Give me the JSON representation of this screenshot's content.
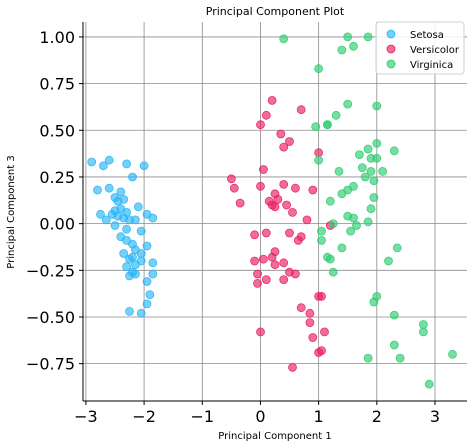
{
  "chart_data": {
    "type": "scatter",
    "title": "Principal Component Plot",
    "xlabel": "Principal Component 1",
    "ylabel": "Principal Component 3",
    "xlim": [
      -3.05,
      3.55
    ],
    "ylim": [
      -0.95,
      1.08
    ],
    "xticks": [
      -3,
      -2,
      -1,
      0,
      1,
      2,
      3
    ],
    "xtick_labels": [
      "−3",
      "−2",
      "−1",
      "0",
      "1",
      "2",
      "3"
    ],
    "yticks": [
      1.0,
      0.75,
      0.5,
      0.25,
      0.0,
      -0.25,
      -0.5,
      -0.75
    ],
    "ytick_labels": [
      "1.00",
      "0.75",
      "0.50",
      "0.25",
      "0.00",
      "−0.25",
      "−0.50",
      "−0.75"
    ],
    "grid": true,
    "legend_position": "top-right",
    "series": [
      {
        "name": "Setosa",
        "color": "#29b6f6",
        "points": [
          [
            -2.9,
            0.33
          ],
          [
            -2.7,
            0.31
          ],
          [
            -2.6,
            0.34
          ],
          [
            -2.3,
            0.32
          ],
          [
            -2.0,
            0.31
          ],
          [
            -2.8,
            0.18
          ],
          [
            -2.6,
            0.19
          ],
          [
            -2.5,
            0.14
          ],
          [
            -2.4,
            0.17
          ],
          [
            -2.2,
            0.25
          ],
          [
            -2.45,
            0.12
          ],
          [
            -2.35,
            0.13
          ],
          [
            -2.5,
            0.07
          ],
          [
            -2.4,
            0.08
          ],
          [
            -2.3,
            0.06
          ],
          [
            -2.55,
            0.05
          ],
          [
            -2.45,
            0.04
          ],
          [
            -2.35,
            0.03
          ],
          [
            -2.25,
            0.02
          ],
          [
            -2.15,
            0.02
          ],
          [
            -2.75,
            0.05
          ],
          [
            -2.65,
            0.02
          ],
          [
            -2.1,
            0.09
          ],
          [
            -1.95,
            0.05
          ],
          [
            -1.85,
            0.03
          ],
          [
            -2.5,
            -0.01
          ],
          [
            -2.3,
            -0.03
          ],
          [
            -2.05,
            -0.04
          ],
          [
            -2.4,
            -0.07
          ],
          [
            -2.3,
            -0.09
          ],
          [
            -2.2,
            -0.11
          ],
          [
            -2.15,
            -0.14
          ],
          [
            -2.05,
            -0.16
          ],
          [
            -1.95,
            -0.12
          ],
          [
            -2.35,
            -0.16
          ],
          [
            -2.25,
            -0.19
          ],
          [
            -2.15,
            -0.22
          ],
          [
            -2.05,
            -0.2
          ],
          [
            -2.3,
            -0.23
          ],
          [
            -2.2,
            -0.26
          ],
          [
            -2.25,
            -0.28
          ],
          [
            -2.15,
            -0.27
          ],
          [
            -1.85,
            -0.21
          ],
          [
            -1.85,
            -0.27
          ],
          [
            -1.95,
            -0.31
          ],
          [
            -1.9,
            -0.38
          ],
          [
            -1.95,
            -0.43
          ],
          [
            -2.25,
            -0.47
          ],
          [
            -2.05,
            -0.48
          ],
          [
            -2.2,
            -0.18
          ]
        ]
      },
      {
        "name": "Versicolor",
        "color": "#e91e63",
        "points": [
          [
            0.2,
            0.66
          ],
          [
            0.7,
            0.61
          ],
          [
            0.1,
            0.58
          ],
          [
            0.0,
            0.53
          ],
          [
            0.35,
            0.48
          ],
          [
            0.5,
            0.44
          ],
          [
            0.4,
            0.41
          ],
          [
            1.0,
            0.38
          ],
          [
            0.05,
            0.29
          ],
          [
            -0.5,
            0.24
          ],
          [
            -0.45,
            0.19
          ],
          [
            -0.35,
            0.11
          ],
          [
            0.0,
            0.2
          ],
          [
            0.25,
            0.16
          ],
          [
            0.6,
            0.19
          ],
          [
            0.4,
            0.21
          ],
          [
            0.9,
            0.18
          ],
          [
            0.3,
            0.13
          ],
          [
            0.45,
            0.1
          ],
          [
            0.55,
            0.06
          ],
          [
            0.25,
            0.09
          ],
          [
            0.2,
            0.1
          ],
          [
            0.15,
            0.12
          ],
          [
            0.8,
            0.02
          ],
          [
            1.2,
            -0.01
          ],
          [
            0.1,
            -0.05
          ],
          [
            -0.1,
            -0.06
          ],
          [
            0.7,
            -0.07
          ],
          [
            0.5,
            -0.05
          ],
          [
            0.65,
            -0.09
          ],
          [
            0.25,
            -0.15
          ],
          [
            0.2,
            -0.18
          ],
          [
            0.05,
            -0.19
          ],
          [
            0.4,
            -0.21
          ],
          [
            -0.1,
            -0.2
          ],
          [
            -0.05,
            -0.27
          ],
          [
            0.25,
            -0.22
          ],
          [
            0.5,
            -0.26
          ],
          [
            0.6,
            -0.27
          ],
          [
            0.4,
            -0.3
          ],
          [
            -0.05,
            -0.32
          ],
          [
            0.1,
            -0.3
          ],
          [
            1.0,
            -0.39
          ],
          [
            1.05,
            -0.39
          ],
          [
            0.7,
            -0.45
          ],
          [
            0.85,
            -0.48
          ],
          [
            0.85,
            -0.53
          ],
          [
            1.1,
            -0.58
          ],
          [
            0.9,
            -0.61
          ],
          [
            1.05,
            -0.68
          ],
          [
            1.0,
            -0.69
          ],
          [
            0.55,
            -0.77
          ],
          [
            0.0,
            -0.58
          ]
        ]
      },
      {
        "name": "Virginica",
        "color": "#2ecc71",
        "points": [
          [
            0.4,
            0.99
          ],
          [
            1.5,
            1.0
          ],
          [
            1.85,
            1.0
          ],
          [
            1.4,
            0.93
          ],
          [
            1.6,
            0.95
          ],
          [
            1.0,
            0.83
          ],
          [
            1.15,
            0.53
          ],
          [
            1.5,
            0.64
          ],
          [
            2.0,
            0.63
          ],
          [
            1.3,
            0.58
          ],
          [
            0.95,
            0.52
          ],
          [
            1.15,
            0.53
          ],
          [
            2.0,
            0.43
          ],
          [
            1.85,
            0.4
          ],
          [
            1.7,
            0.37
          ],
          [
            2.3,
            0.39
          ],
          [
            1.9,
            0.35
          ],
          [
            2.0,
            0.35
          ],
          [
            1.0,
            0.34
          ],
          [
            1.35,
            0.28
          ],
          [
            1.75,
            0.3
          ],
          [
            1.9,
            0.28
          ],
          [
            2.1,
            0.28
          ],
          [
            1.95,
            0.23
          ],
          [
            1.8,
            0.25
          ],
          [
            1.5,
            0.18
          ],
          [
            1.4,
            0.16
          ],
          [
            1.6,
            0.2
          ],
          [
            1.95,
            0.14
          ],
          [
            1.2,
            0.12
          ],
          [
            1.9,
            0.08
          ],
          [
            1.5,
            0.04
          ],
          [
            1.6,
            0.03
          ],
          [
            1.85,
            0.01
          ],
          [
            1.25,
            0.0
          ],
          [
            1.65,
            -0.01
          ],
          [
            1.55,
            -0.04
          ],
          [
            1.05,
            -0.04
          ],
          [
            1.05,
            -0.09
          ],
          [
            1.15,
            -0.18
          ],
          [
            1.2,
            -0.19
          ],
          [
            1.4,
            -0.13
          ],
          [
            1.25,
            -0.26
          ],
          [
            2.2,
            -0.2
          ],
          [
            2.35,
            -0.13
          ],
          [
            2.0,
            -0.39
          ],
          [
            1.95,
            -0.42
          ],
          [
            2.3,
            -0.49
          ],
          [
            2.8,
            -0.54
          ],
          [
            2.8,
            -0.58
          ],
          [
            2.3,
            -0.65
          ],
          [
            2.4,
            -0.72
          ],
          [
            3.3,
            -0.7
          ],
          [
            1.85,
            -0.72
          ],
          [
            2.9,
            -0.86
          ]
        ]
      }
    ]
  }
}
